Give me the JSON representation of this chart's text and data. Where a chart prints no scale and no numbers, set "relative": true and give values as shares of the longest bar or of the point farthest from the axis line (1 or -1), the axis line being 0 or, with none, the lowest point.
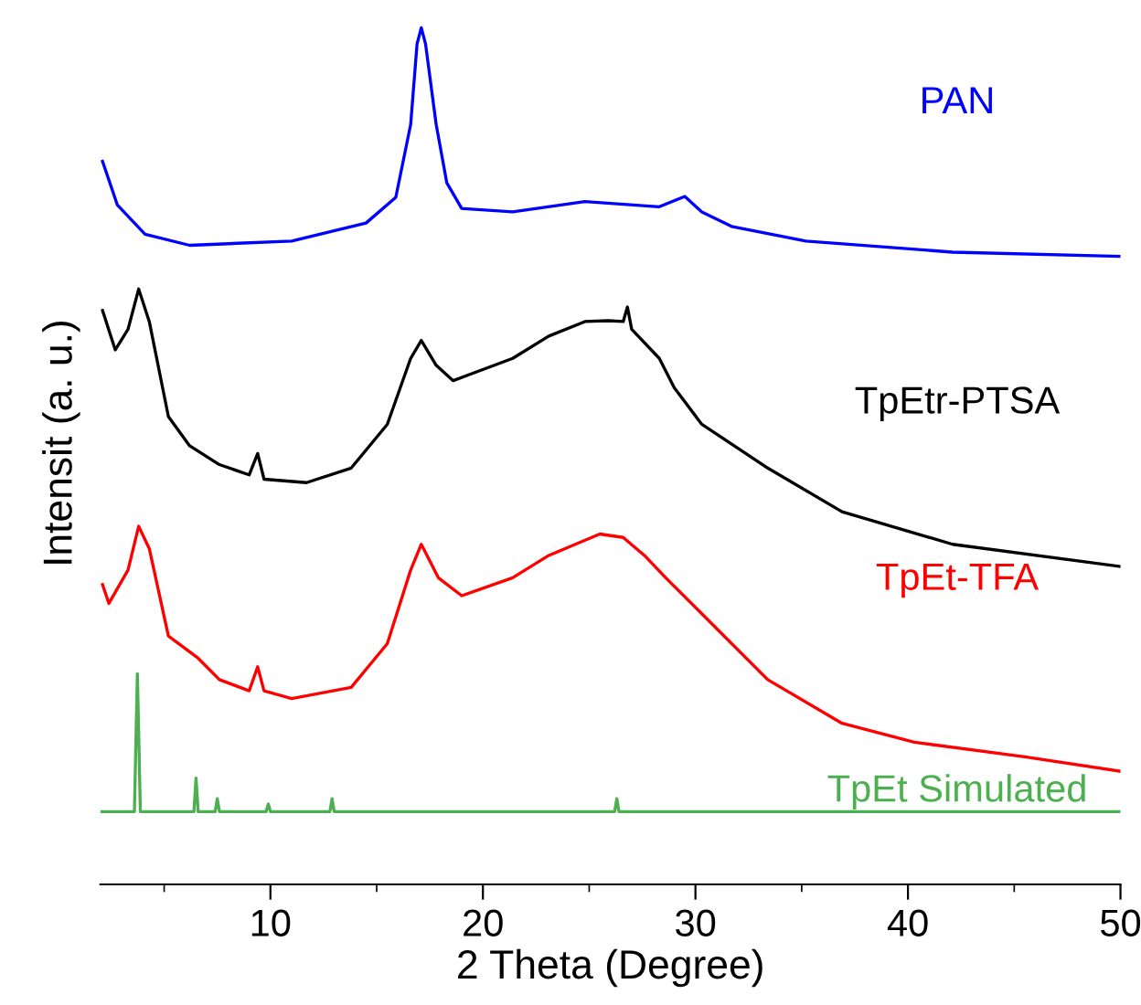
{
  "chart_data": {
    "type": "line",
    "relative": true,
    "xlabel": "2 Theta (Degree)",
    "ylabel": "Intensit (a. u.)",
    "xlim": [
      2,
      50
    ],
    "xticks": [
      {
        "value": 5,
        "label": null
      },
      10,
      {
        "value": 15,
        "label": null
      },
      20,
      {
        "value": 25,
        "label": null
      },
      30,
      {
        "value": 35,
        "label": null
      },
      40,
      {
        "value": 45,
        "label": null
      },
      50
    ],
    "grid": false,
    "legend": false,
    "tick_labels": "x",
    "series": [
      {
        "name": "PAN",
        "color": "#0000ff",
        "x": [
          2.1,
          2.8,
          4.1,
          6.2,
          11.0,
          14.5,
          15.9,
          16.6,
          16.9,
          17.1,
          17.3,
          17.8,
          18.3,
          19.0,
          21.4,
          24.8,
          28.3,
          29.5,
          30.3,
          31.7,
          35.2,
          42.1,
          50.0
        ],
        "values": [
          0.844,
          0.793,
          0.759,
          0.746,
          0.751,
          0.772,
          0.802,
          0.887,
          0.981,
          1.0,
          0.981,
          0.887,
          0.819,
          0.789,
          0.785,
          0.797,
          0.791,
          0.803,
          0.785,
          0.768,
          0.751,
          0.738,
          0.733
        ]
      },
      {
        "name": "TpEtr-PTSA",
        "color": "#000000",
        "x": [
          2.1,
          2.7,
          3.3,
          3.8,
          4.3,
          5.2,
          6.2,
          7.6,
          9.0,
          9.4,
          9.7,
          11.7,
          13.8,
          15.5,
          16.6,
          17.1,
          17.8,
          18.6,
          21.4,
          23.1,
          24.8,
          25.9,
          26.6,
          26.8,
          27.0,
          28.3,
          29.0,
          30.3,
          33.4,
          36.9,
          42.1,
          50.0
        ],
        "values": [
          0.67,
          0.624,
          0.648,
          0.695,
          0.657,
          0.546,
          0.512,
          0.49,
          0.478,
          0.503,
          0.473,
          0.469,
          0.486,
          0.537,
          0.614,
          0.635,
          0.606,
          0.588,
          0.614,
          0.64,
          0.657,
          0.658,
          0.657,
          0.674,
          0.648,
          0.614,
          0.58,
          0.537,
          0.486,
          0.435,
          0.397,
          0.371
        ]
      },
      {
        "name": "TpEt-TFA",
        "color": "#ff0000",
        "x": [
          2.1,
          2.4,
          3.3,
          3.8,
          4.3,
          5.2,
          6.6,
          7.6,
          9.0,
          9.4,
          9.7,
          11.0,
          13.8,
          15.5,
          16.6,
          17.1,
          17.9,
          19.0,
          21.4,
          23.1,
          25.5,
          26.6,
          27.6,
          28.6,
          30.3,
          33.4,
          36.9,
          40.3,
          45.5,
          50.0
        ],
        "values": [
          0.35,
          0.328,
          0.367,
          0.418,
          0.392,
          0.29,
          0.264,
          0.239,
          0.226,
          0.254,
          0.226,
          0.217,
          0.23,
          0.281,
          0.367,
          0.397,
          0.358,
          0.337,
          0.358,
          0.384,
          0.409,
          0.405,
          0.384,
          0.358,
          0.316,
          0.239,
          0.188,
          0.166,
          0.149,
          0.132
        ]
      },
      {
        "name": "TpEt Simulated",
        "color": "#4caf50",
        "x": [
          2.0,
          3.6,
          3.74,
          3.88,
          6.4,
          6.5,
          6.6,
          7.4,
          7.5,
          7.6,
          9.8,
          9.9,
          10.0,
          12.8,
          12.9,
          13.0,
          26.2,
          26.3,
          26.4,
          50.0
        ],
        "values": [
          0.085,
          0.085,
          0.246,
          0.085,
          0.085,
          0.124,
          0.085,
          0.085,
          0.1,
          0.085,
          0.085,
          0.094,
          0.085,
          0.085,
          0.1,
          0.085,
          0.085,
          0.1,
          0.085,
          0.085
        ]
      }
    ]
  }
}
